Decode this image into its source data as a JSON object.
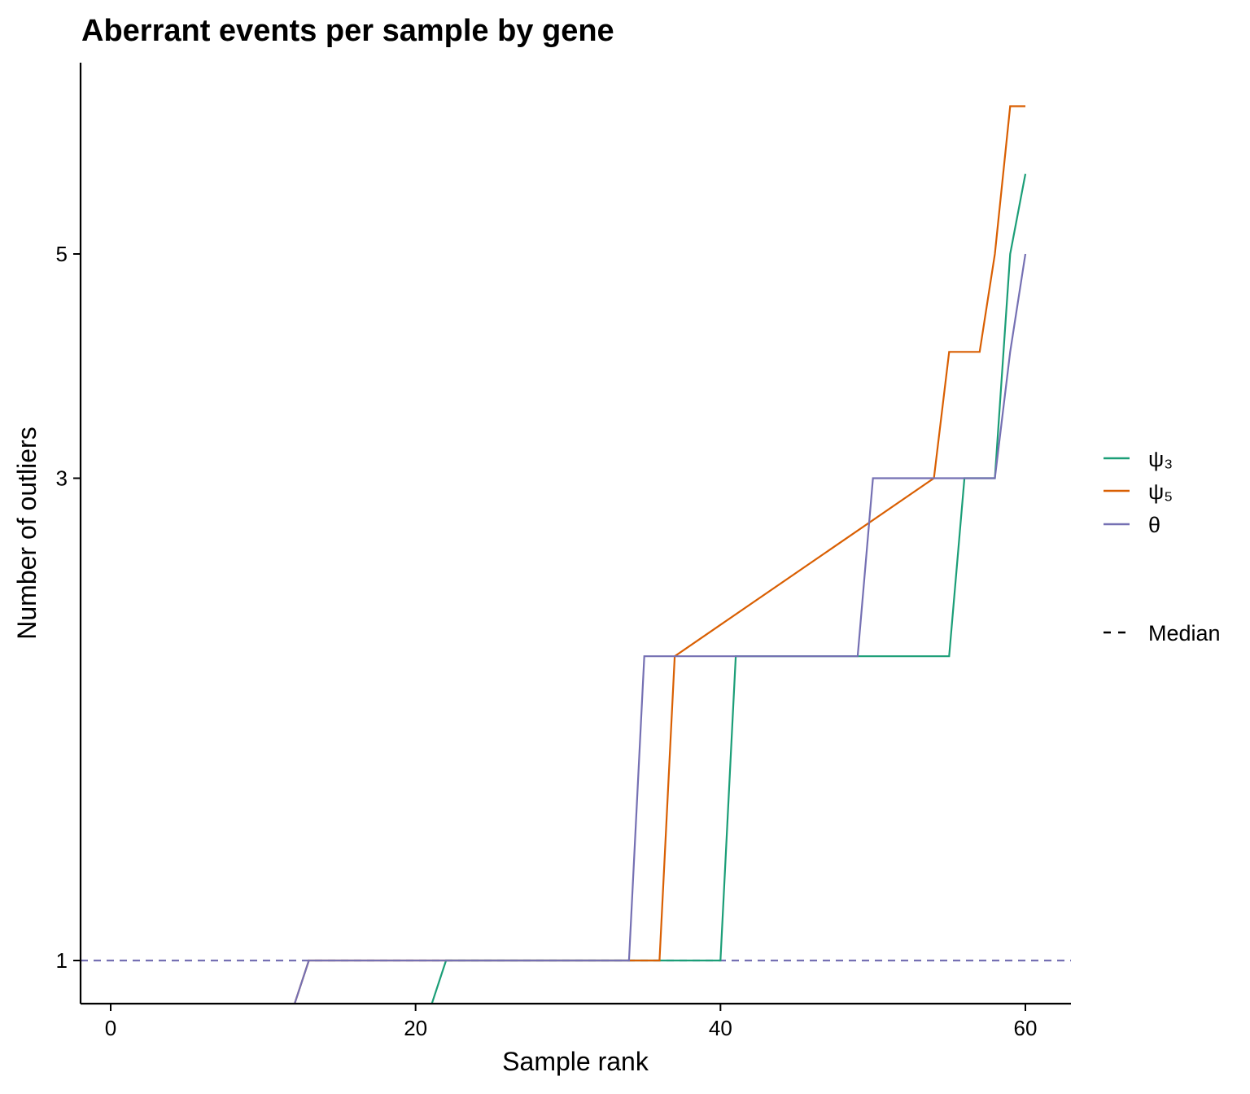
{
  "chart_data": {
    "type": "line",
    "title": "Aberrant events per sample by gene",
    "xlabel": "Sample rank",
    "ylabel": "Number of outliers",
    "y_scale": "log",
    "xlim": [
      -2,
      63
    ],
    "ylim": [
      0.9,
      7.4
    ],
    "x_ticks": [
      0,
      20,
      40,
      60
    ],
    "y_ticks": [
      1,
      3,
      5
    ],
    "grid": false,
    "legend_position": "right",
    "series": [
      {
        "name": "ψ₃",
        "color": "#1b9e77",
        "x": [
          1,
          21,
          22,
          40,
          41,
          55,
          56,
          58,
          59,
          60
        ],
        "y": [
          0.9,
          0.9,
          1,
          1,
          2,
          2,
          3,
          3,
          5,
          6
        ]
      },
      {
        "name": "ψ₅",
        "color": "#d95f02",
        "x": [
          1,
          12,
          13,
          36,
          37,
          54,
          55,
          57,
          58,
          59,
          60
        ],
        "y": [
          0.9,
          0.9,
          1,
          1,
          2,
          3,
          4,
          4,
          5,
          7,
          7
        ]
      },
      {
        "name": "θ",
        "color": "#7570b3",
        "x": [
          1,
          12,
          13,
          34,
          35,
          49,
          50,
          58,
          59,
          60
        ],
        "y": [
          0.9,
          0.9,
          1,
          1,
          2,
          2,
          3,
          3,
          4,
          5
        ]
      }
    ],
    "median_line": {
      "name": "Median",
      "y": 1,
      "color": "#7570b3",
      "style": "dashed"
    }
  }
}
